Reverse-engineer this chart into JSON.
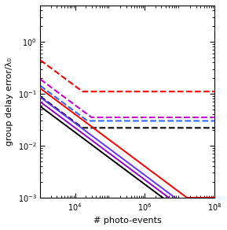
{
  "title": "",
  "xlabel": "# photo-events",
  "ylabel": "group delay error/λ₀",
  "xlim": [
    1000,
    100000000.0
  ],
  "ylim": [
    0.001,
    5.0
  ],
  "solid_lines": [
    {
      "color": "#000000",
      "A": 1.8,
      "slope": -0.5,
      "floor": 0.00085
    },
    {
      "color": "#9900cc",
      "A": 2.2,
      "slope": -0.5,
      "floor": 0.0009
    },
    {
      "color": "#6633ff",
      "A": 2.7,
      "slope": -0.5,
      "floor": 0.00095
    },
    {
      "color": "#ff0000",
      "A": 4.0,
      "slope": -0.5,
      "floor": 0.001
    }
  ],
  "dashed_lines": [
    {
      "color": "#000000",
      "A": 2.8,
      "slope": -0.5,
      "floor": 0.022
    },
    {
      "color": "#3366ff",
      "A": 4.5,
      "slope": -0.5,
      "floor": 0.03
    },
    {
      "color": "#cc00cc",
      "A": 6.0,
      "slope": -0.5,
      "floor": 0.035
    },
    {
      "color": "#ff0000",
      "A": 14.0,
      "slope": -0.5,
      "floor": 0.11
    }
  ],
  "background_color": "#ffffff",
  "linewidth": 1.4,
  "dashed_linewidth": 1.5
}
